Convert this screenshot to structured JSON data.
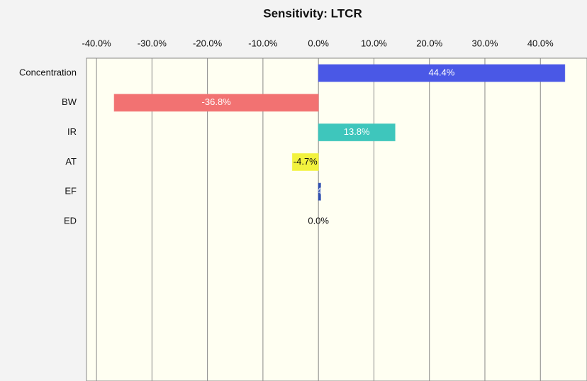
{
  "chart_data": {
    "type": "bar",
    "orientation": "horizontal",
    "title": "Sensitivity: LTCR",
    "categories": [
      "Concentration",
      "BW",
      "IR",
      "AT",
      "EF",
      "ED"
    ],
    "values": [
      44.4,
      -36.8,
      13.8,
      -4.7,
      0.4,
      0.0
    ],
    "value_labels": [
      "44.4%",
      "-36.8%",
      "13.8%",
      "-4.7%",
      "0.4%",
      "0.0%"
    ],
    "colors": [
      "#4a58e6",
      "#f27272",
      "#3ec6bc",
      "#f2f23e",
      "#2f4fb0",
      "#888888"
    ],
    "xlim": [
      -41.8,
      48.4
    ],
    "xticks": [
      {
        "value": -40,
        "label": "-40.0%"
      },
      {
        "value": -30,
        "label": "-30.0%"
      },
      {
        "value": -20,
        "label": "-20.0%"
      },
      {
        "value": -10,
        "label": "-10.0%"
      },
      {
        "value": 0,
        "label": "0.0%"
      },
      {
        "value": 10,
        "label": "10.0%"
      },
      {
        "value": 20,
        "label": "20.0%"
      },
      {
        "value": 30,
        "label": "30.0%"
      },
      {
        "value": 40,
        "label": "40.0%"
      }
    ],
    "grid": true
  }
}
